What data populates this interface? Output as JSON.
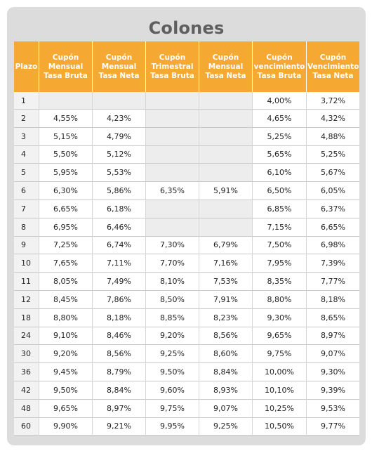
{
  "title": "Colones",
  "headers": [
    [
      "Plazo"
    ],
    [
      "Cupón",
      "Mensual",
      "Tasa Bruta"
    ],
    [
      "Cupón",
      "Mensual",
      "Tasa Neta"
    ],
    [
      "Cupón",
      "Trimestral",
      "Tasa Bruta"
    ],
    [
      "Cupón",
      "Mensual",
      "Tasa Neta"
    ],
    [
      "Cupón",
      "vencimiento",
      "Tasa Bruta"
    ],
    [
      "Cupón",
      "Vencimiento",
      "Tasa Neta"
    ]
  ],
  "rows": [
    [
      "1",
      "",
      "",
      "",
      "",
      "4,00%",
      "3,72%"
    ],
    [
      "2",
      "4,55%",
      "4,23%",
      "",
      "",
      "4,65%",
      "4,32%"
    ],
    [
      "3",
      "5,15%",
      "4,79%",
      "",
      "",
      "5,25%",
      "4,88%"
    ],
    [
      "4",
      "5,50%",
      "5,12%",
      "",
      "",
      "5,65%",
      "5,25%"
    ],
    [
      "5",
      "5,95%",
      "5,53%",
      "",
      "",
      "6,10%",
      "5,67%"
    ],
    [
      "6",
      "6,30%",
      "5,86%",
      "6,35%",
      "5,91%",
      "6,50%",
      "6,05%"
    ],
    [
      "7",
      "6,65%",
      "6,18%",
      "",
      "",
      "6,85%",
      "6,37%"
    ],
    [
      "8",
      "6,95%",
      "6,46%",
      "",
      "",
      "7,15%",
      "6,65%"
    ],
    [
      "9",
      "7,25%",
      "6,74%",
      "7,30%",
      "6,79%",
      "7,50%",
      "6,98%"
    ],
    [
      "10",
      "7,65%",
      "7,11%",
      "7,70%",
      "7,16%",
      "7,95%",
      "7,39%"
    ],
    [
      "11",
      "8,05%",
      "7,49%",
      "8,10%",
      "7,53%",
      "8,35%",
      "7,77%"
    ],
    [
      "12",
      "8,45%",
      "7,86%",
      "8,50%",
      "7,91%",
      "8,80%",
      "8,18%"
    ],
    [
      "18",
      "8,80%",
      "8,18%",
      "8,85%",
      "8,23%",
      "9,30%",
      "8,65%"
    ],
    [
      "24",
      "9,10%",
      "8,46%",
      "9,20%",
      "8,56%",
      "9,65%",
      "8,97%"
    ],
    [
      "30",
      "9,20%",
      "8,56%",
      "9,25%",
      "8,60%",
      "9,75%",
      "9,07%"
    ],
    [
      "36",
      "9,45%",
      "8,79%",
      "9,50%",
      "8,84%",
      "10,00%",
      "9,30%"
    ],
    [
      "42",
      "9,50%",
      "8,84%",
      "9,60%",
      "8,93%",
      "10,10%",
      "9,39%"
    ],
    [
      "48",
      "9,65%",
      "8,97%",
      "9,75%",
      "9,07%",
      "10,25%",
      "9,53%"
    ],
    [
      "60",
      "9,90%",
      "9,21%",
      "9,95%",
      "9,25%",
      "10,50%",
      "9,77%"
    ]
  ],
  "colors": {
    "header_bg": "#f6a932",
    "header_text": "#ffffff",
    "panel_bg": "#dcdcdc",
    "title_text": "#5f5f5f",
    "empty_cell": "#ededed"
  }
}
